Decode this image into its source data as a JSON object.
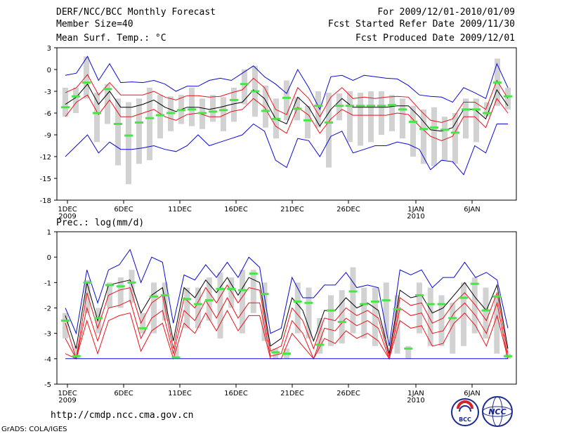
{
  "header": {
    "title": "DERF/NCC/BCC Monthly Forecast",
    "member_size": "Member Size=40",
    "for_period": "For 2009/12/01-2010/01/09",
    "start_date": "Fcst Started Refer Date 2009/11/30",
    "produced_date": "Fcst Produced Date 2009/12/01"
  },
  "footer": {
    "url": "http://cmdp.ncc.cma.gov.cn",
    "credit": "GrADS: COLA/IGES",
    "logo_bcc_text": "BCC",
    "logo_ncc_text": "NCC"
  },
  "colors": {
    "ensemble_mean": "#000000",
    "spread": "#e8141b",
    "extreme": "#0a0ad2",
    "box": "#d2d2d2",
    "median": "#46e646"
  },
  "chart_data": [
    {
      "type": "line",
      "subtitle": "Mean Surf. Temp.: °C",
      "ylim": [
        -18,
        3
      ],
      "yticks": [
        3,
        0,
        -3,
        -6,
        -9,
        -12,
        -15,
        -18
      ],
      "xtick_labels": [
        {
          "day": 1,
          "label": "1DEC",
          "sub": "2009"
        },
        {
          "day": 6,
          "label": "6DEC",
          "sub": ""
        },
        {
          "day": 11,
          "label": "11DEC",
          "sub": ""
        },
        {
          "day": 16,
          "label": "16DEC",
          "sub": ""
        },
        {
          "day": 21,
          "label": "21DEC",
          "sub": ""
        },
        {
          "day": 26,
          "label": "26DEC",
          "sub": ""
        },
        {
          "day": 32,
          "label": "1JAN",
          "sub": "2010"
        },
        {
          "day": 37,
          "label": "6JAN",
          "sub": ""
        }
      ],
      "series": [
        {
          "name": "max",
          "role": "extreme",
          "values": [
            -0.8,
            -0.5,
            1.8,
            -1.5,
            0.8,
            -1.8,
            -1.7,
            -1.8,
            -1.5,
            -2,
            -3,
            -2.3,
            -2.3,
            -1.5,
            -1.2,
            -1.5,
            -0.5,
            0.5,
            -1,
            -2,
            -3.3,
            0,
            -2.5,
            -5.5,
            -1,
            -0.8,
            -1.5,
            -0.8,
            -1,
            -1.2,
            -1.3,
            -2.2,
            -3.5,
            -3.7,
            -3.8,
            -4.5,
            -2.5,
            -3.2,
            -4,
            0.8,
            -2.5
          ]
        },
        {
          "name": "upper",
          "role": "spread",
          "values": [
            -3.2,
            -2.5,
            -0.7,
            -3.5,
            -1.8,
            -3.5,
            -3.5,
            -3.5,
            -3,
            -3.8,
            -4.2,
            -3.6,
            -3.6,
            -3.8,
            -3.7,
            -3.2,
            -2.8,
            -1.2,
            -2.5,
            -5.5,
            -6.2,
            -2.5,
            -4,
            -6.5,
            -3.8,
            -2.5,
            -4,
            -3.8,
            -4,
            -3.8,
            -3.7,
            -3.8,
            -5.5,
            -7,
            -7.3,
            -6.8,
            -4.5,
            -4.5,
            -5.5,
            -1.5,
            -4
          ]
        },
        {
          "name": "mean",
          "role": "ensemble_mean",
          "values": [
            -4.8,
            -3.8,
            -2,
            -4.8,
            -3,
            -5.2,
            -5.2,
            -4.8,
            -4.2,
            -5.2,
            -5.8,
            -5.2,
            -5.2,
            -5.5,
            -5.2,
            -4.8,
            -4.5,
            -2.8,
            -4,
            -6.8,
            -7.5,
            -3.8,
            -5.2,
            -7.8,
            -5.5,
            -4,
            -5.2,
            -5.2,
            -5.2,
            -5.2,
            -5,
            -5,
            -6.5,
            -8.3,
            -8.5,
            -8,
            -5.5,
            -5.5,
            -6.8,
            -2.8,
            -5
          ]
        },
        {
          "name": "lower",
          "role": "spread",
          "values": [
            -6.5,
            -4.5,
            -3.5,
            -6.2,
            -4.2,
            -6.5,
            -6.5,
            -6,
            -5.5,
            -6.5,
            -7,
            -6.2,
            -6,
            -6.5,
            -6.5,
            -5.8,
            -5.5,
            -4,
            -5.2,
            -7.8,
            -8.8,
            -5.2,
            -6.3,
            -8.8,
            -6.8,
            -5.5,
            -6.3,
            -6.3,
            -6.3,
            -6.3,
            -6,
            -6.2,
            -7.8,
            -9.2,
            -9.8,
            -9.2,
            -6.5,
            -6.5,
            -8,
            -4,
            -6
          ]
        },
        {
          "name": "min",
          "role": "extreme",
          "values": [
            -12,
            -10.5,
            -9,
            -11.5,
            -10,
            -11,
            -11,
            -10.8,
            -10.5,
            -11,
            -11.3,
            -10.5,
            -9,
            -10.5,
            -10,
            -9.5,
            -9,
            -7.5,
            -8.5,
            -12.5,
            -13.5,
            -9.5,
            -9.8,
            -12,
            -9.2,
            -8.5,
            -11.5,
            -11,
            -10.5,
            -10.5,
            -10,
            -10.3,
            -11,
            -13.8,
            -12.5,
            -12.7,
            -14.5,
            -10.5,
            -11.5,
            -7.5,
            -7.5
          ]
        }
      ],
      "boxes": [
        {
          "low": -6.5,
          "high": -2.5,
          "median": -5.2
        },
        {
          "low": -6.0,
          "high": -2.5,
          "median": -3.7
        },
        {
          "low": -4.0,
          "high": 1.8,
          "median": -1.8
        },
        {
          "low": -10.0,
          "high": -3.2,
          "median": -6.0
        },
        {
          "low": -7.5,
          "high": -2.0,
          "median": -2.7
        },
        {
          "low": -13.2,
          "high": -4.0,
          "median": -7.5
        },
        {
          "low": -15.8,
          "high": -4.5,
          "median": -9.1
        },
        {
          "low": -13.0,
          "high": -4.0,
          "median": -7.3
        },
        {
          "low": -12.5,
          "high": -2.5,
          "median": -6.7
        },
        {
          "low": -9.5,
          "high": -3.5,
          "median": -6.3
        },
        {
          "low": -8.5,
          "high": -3.7,
          "median": -6.0
        },
        {
          "low": -7.5,
          "high": -3.5,
          "median": -5.6
        },
        {
          "low": -7.8,
          "high": -2.5,
          "median": -5.5
        },
        {
          "low": -8.2,
          "high": -4.0,
          "median": -6.0
        },
        {
          "low": -7.2,
          "high": -3.5,
          "median": -5.8
        },
        {
          "low": -8.5,
          "high": -3.8,
          "median": -5.6
        },
        {
          "low": -7.2,
          "high": -2.5,
          "median": -4.2
        },
        {
          "low": -4.8,
          "high": 0.0,
          "median": -2.0
        },
        {
          "low": -6.5,
          "high": 0.5,
          "median": -3.0
        },
        {
          "low": -8.0,
          "high": -2.2,
          "median": -5.7
        },
        {
          "low": -9.5,
          "high": -4.0,
          "median": -6.8
        },
        {
          "low": -7.0,
          "high": -1.5,
          "median": -3.9
        },
        {
          "low": -7.0,
          "high": -3.8,
          "median": -5.4
        },
        {
          "low": -9.5,
          "high": -5.0,
          "median": -7.0
        },
        {
          "low": -8.0,
          "high": -3.0,
          "median": -5.0
        },
        {
          "low": -13.5,
          "high": -3.2,
          "median": -7.3
        },
        {
          "low": -7.0,
          "high": -3.3,
          "median": -5.0
        },
        {
          "low": -10.0,
          "high": -3.0,
          "median": -5.0
        },
        {
          "low": -10.5,
          "high": -3.2,
          "median": -5.0
        },
        {
          "low": -10.0,
          "high": -3.0,
          "median": -5.0
        },
        {
          "low": -9.0,
          "high": -3.0,
          "median": -5.0
        },
        {
          "low": -8.5,
          "high": -3.5,
          "median": -4.9
        },
        {
          "low": -9.5,
          "high": -4.0,
          "median": -5.5
        },
        {
          "low": -12.0,
          "high": -5.0,
          "median": -7.2
        },
        {
          "low": -13.0,
          "high": -5.5,
          "median": -8.2
        },
        {
          "low": -13.3,
          "high": -5.2,
          "median": -8.0
        },
        {
          "low": -12.5,
          "high": -6.5,
          "median": -8.3
        },
        {
          "low": -13.0,
          "high": -6.0,
          "median": -8.7
        },
        {
          "low": -9.5,
          "high": -4.0,
          "median": -5.5
        },
        {
          "low": -10.0,
          "high": -4.0,
          "median": -5.5
        },
        {
          "low": -6.5,
          "high": -4.5,
          "median": -6.0
        },
        {
          "low": -5.0,
          "high": 1.5,
          "median": -1.8
        },
        {
          "low": -5.5,
          "high": -2.5,
          "median": -3.7
        }
      ]
    },
    {
      "type": "line",
      "subtitle": "Prec.: log(mm/d)",
      "ylim": [
        -5,
        1
      ],
      "yticks": [
        1,
        0,
        -1,
        -2,
        -3,
        -4,
        -5
      ],
      "xtick_labels": [
        {
          "day": 1,
          "label": "1DEC",
          "sub": "2009"
        },
        {
          "day": 6,
          "label": "6DEC",
          "sub": ""
        },
        {
          "day": 11,
          "label": "11DEC",
          "sub": ""
        },
        {
          "day": 16,
          "label": "16DEC",
          "sub": ""
        },
        {
          "day": 21,
          "label": "21DEC",
          "sub": ""
        },
        {
          "day": 26,
          "label": "26DEC",
          "sub": ""
        },
        {
          "day": 32,
          "label": "1JAN",
          "sub": "2010"
        },
        {
          "day": 37,
          "label": "6JAN",
          "sub": ""
        }
      ],
      "series": [
        {
          "name": "max",
          "role": "extreme",
          "values": [
            -2,
            -3,
            -0.5,
            -1.8,
            -0.5,
            -0.3,
            0.3,
            -1,
            0,
            -0.2,
            -2.6,
            -0.7,
            -0.9,
            -0.3,
            -0.8,
            -0.2,
            -0.8,
            0,
            -0.4,
            -3,
            -2.8,
            -0.8,
            -1.6,
            -1.6,
            -1.1,
            -1.1,
            -0.6,
            -1.2,
            -1.1,
            -1.2,
            -3.5,
            -0.5,
            -0.7,
            -0.5,
            -1.2,
            -0.8,
            -0.8,
            -0.2,
            -0.8,
            -0.6,
            -0.9,
            -2.8
          ]
        },
        {
          "name": "mean",
          "role": "ensemble_mean",
          "values": [
            -2.3,
            -3.6,
            -1,
            -2.5,
            -1.1,
            -1,
            -0.9,
            -2.2,
            -1.5,
            -1.2,
            -3.3,
            -1.2,
            -1.6,
            -0.9,
            -1.4,
            -0.8,
            -1.5,
            -0.8,
            -1,
            -3.5,
            -3.2,
            -1.6,
            -2.1,
            -3.3,
            -2.1,
            -2.1,
            -1.6,
            -2,
            -1.8,
            -2.1,
            -3.8,
            -1.3,
            -1.6,
            -1.5,
            -2.2,
            -2,
            -1.5,
            -1,
            -1.6,
            -2.1,
            -1.1,
            -3.6
          ]
        },
        {
          "name": "upper",
          "role": "spread",
          "values": [
            -2.6,
            -4,
            -1.4,
            -2.8,
            -1.5,
            -1.3,
            -1.2,
            -2.6,
            -1.8,
            -1.5,
            -3.6,
            -1.6,
            -2,
            -1.2,
            -1.8,
            -1.1,
            -1.8,
            -1.2,
            -1.3,
            -3.7,
            -3.5,
            -2,
            -2.5,
            -3.6,
            -2.4,
            -2.5,
            -2,
            -2.3,
            -2.1,
            -2.4,
            -3.9,
            -1.6,
            -1.9,
            -1.8,
            -2.6,
            -2.4,
            -1.8,
            -1.4,
            -1.9,
            -2.5,
            -1.4,
            -3.8
          ]
        },
        {
          "name": "lower",
          "role": "spread",
          "values": [
            -3.2,
            -4,
            -2,
            -3.3,
            -2,
            -1.9,
            -1.7,
            -3.2,
            -2.4,
            -2.1,
            -3.8,
            -2.1,
            -2.5,
            -1.7,
            -2.4,
            -1.6,
            -2.4,
            -1.8,
            -1.8,
            -3.9,
            -3.8,
            -2.5,
            -3,
            -4,
            -2.8,
            -2.9,
            -2.4,
            -2.7,
            -2.5,
            -2.8,
            -4,
            -2,
            -2.3,
            -2.2,
            -3,
            -2.9,
            -2.2,
            -1.8,
            -2.3,
            -3,
            -1.8,
            -4
          ]
        },
        {
          "name": "lowest",
          "role": "spread",
          "values": [
            -3.8,
            -4,
            -2.5,
            -3.8,
            -2.5,
            -2.3,
            -2.2,
            -3.7,
            -2.9,
            -2.6,
            -4,
            -2.6,
            -3,
            -2.2,
            -2.9,
            -2.1,
            -2.9,
            -2.3,
            -2.3,
            -4,
            -4,
            -3,
            -3.5,
            -4,
            -3.2,
            -3.4,
            -2.9,
            -3.2,
            -3,
            -3.3,
            -4,
            -2.5,
            -2.8,
            -2.7,
            -3.5,
            -3.4,
            -2.6,
            -2.2,
            -2.7,
            -3.5,
            -2.3,
            -4
          ]
        },
        {
          "name": "floor",
          "role": "extreme",
          "values": [
            -4,
            -4,
            -4,
            -4,
            -4,
            -4,
            -4,
            -4,
            -4,
            -4,
            -4,
            -4,
            -4,
            -4,
            -4,
            -4,
            -4,
            -4,
            -4,
            -4,
            -4,
            -4,
            -4,
            -4,
            -4,
            -4,
            -4,
            -4,
            -4,
            -4,
            -4,
            -4,
            -4,
            -4,
            -4,
            -4,
            -4,
            -4,
            -4,
            -4,
            -4,
            -4
          ]
        }
      ],
      "boxes": [
        {
          "low": -3.2,
          "high": -2.2,
          "median": -2.5
        },
        {
          "low": -4.0,
          "high": -3.5,
          "median": -3.9
        },
        {
          "low": -2.2,
          "high": -0.9,
          "median": -1.0
        },
        {
          "low": -3.0,
          "high": -2.0,
          "median": -2.4
        },
        {
          "low": -2.0,
          "high": -1.0,
          "median": -1.1
        },
        {
          "low": -2.0,
          "high": -0.8,
          "median": -1.15
        },
        {
          "low": -1.8,
          "high": -0.5,
          "median": -1.0
        },
        {
          "low": -3.0,
          "high": -2.2,
          "median": -2.8
        },
        {
          "low": -3.0,
          "high": -1.0,
          "median": -1.55
        },
        {
          "low": -2.5,
          "high": -1.0,
          "median": -1.5
        },
        {
          "low": -4.0,
          "high": -3.5,
          "median": -3.95
        },
        {
          "low": -2.8,
          "high": -1.2,
          "median": -1.65
        },
        {
          "low": -2.8,
          "high": -1.2,
          "median": -1.85
        },
        {
          "low": -2.5,
          "high": -0.8,
          "median": -1.7
        },
        {
          "low": -3.2,
          "high": -0.6,
          "median": -1.25
        },
        {
          "low": -2.0,
          "high": -0.8,
          "median": -1.25
        },
        {
          "low": -3.0,
          "high": -0.5,
          "median": -1.3
        },
        {
          "low": -2.2,
          "high": -0.5,
          "median": -0.65
        },
        {
          "low": -3.3,
          "high": -1.0,
          "median": -1.45
        },
        {
          "low": -4.0,
          "high": -3.6,
          "median": -3.75
        },
        {
          "low": -4.0,
          "high": -3.6,
          "median": -3.8
        },
        {
          "low": -3.0,
          "high": -1.0,
          "median": -1.75
        },
        {
          "low": -3.2,
          "high": -1.2,
          "median": -1.8
        },
        {
          "low": -3.8,
          "high": -2.4,
          "median": -3.45
        },
        {
          "low": -3.5,
          "high": -1.5,
          "median": -2.1
        },
        {
          "low": -3.4,
          "high": -1.3,
          "median": -2.55
        },
        {
          "low": -3.0,
          "high": -0.4,
          "median": -1.35
        },
        {
          "low": -3.2,
          "high": -1.2,
          "median": -1.85
        },
        {
          "low": -3.5,
          "high": -1.2,
          "median": -1.75
        },
        {
          "low": -3.2,
          "high": -1.0,
          "median": -1.7
        },
        {
          "low": -3.8,
          "high": -1.5,
          "median": -2.05
        },
        {
          "low": -4.0,
          "high": -3.5,
          "median": -3.6
        },
        {
          "low": -3.0,
          "high": -1.0,
          "median": -1.5
        },
        {
          "low": -3.5,
          "high": -1.2,
          "median": -1.85
        },
        {
          "low": -3.5,
          "high": -1.5,
          "median": -1.85
        },
        {
          "low": -3.8,
          "high": -1.8,
          "median": -2.4
        },
        {
          "low": -3.5,
          "high": -1.0,
          "median": -1.6
        },
        {
          "low": -3.0,
          "high": -0.8,
          "median": -1.05
        },
        {
          "low": -3.2,
          "high": -1.2,
          "median": -2.1
        },
        {
          "low": -3.8,
          "high": -1.5,
          "median": -1.55
        },
        {
          "low": -4.0,
          "high": -3.8,
          "median": -3.9
        }
      ]
    }
  ]
}
